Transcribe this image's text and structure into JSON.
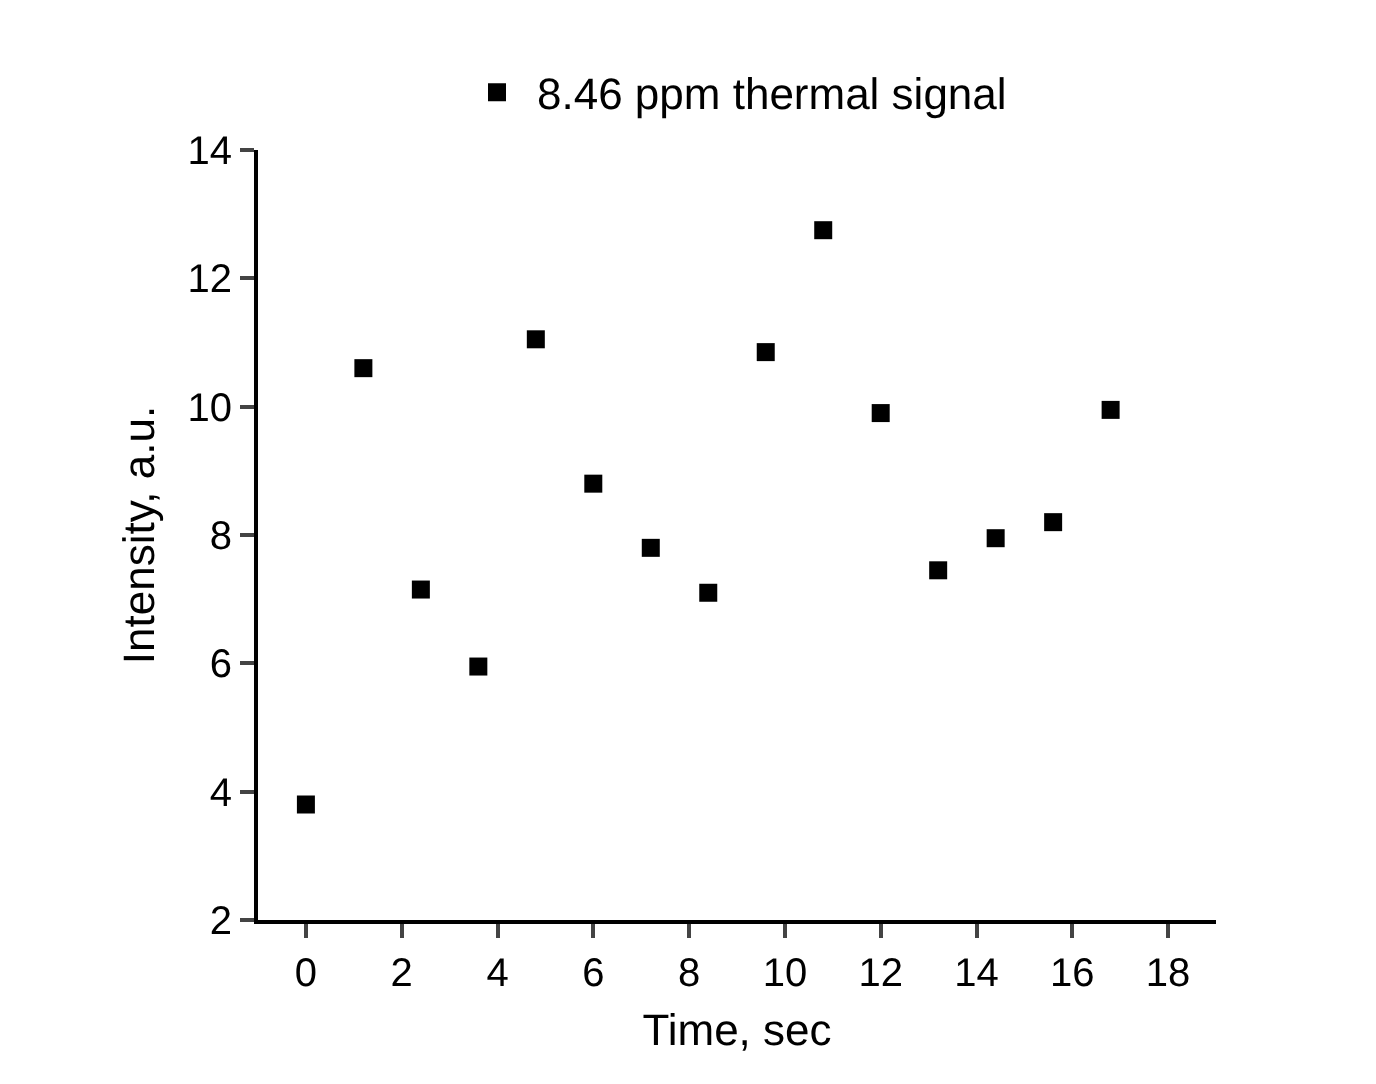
{
  "chart_data": {
    "type": "scatter",
    "xlabel": "Time, sec",
    "ylabel": "Intensity, a.u.",
    "xlim": [
      -1,
      19
    ],
    "ylim": [
      2,
      14
    ],
    "xticks": [
      0,
      2,
      4,
      6,
      8,
      10,
      12,
      14,
      16,
      18
    ],
    "yticks": [
      2,
      4,
      6,
      8,
      10,
      12,
      14
    ],
    "grid": false,
    "legend": "top",
    "marker": "square",
    "x": [
      0,
      1.2,
      2.4,
      3.6,
      4.8,
      6,
      7.2,
      8.4,
      9.6,
      10.8,
      12,
      13.2,
      14.4,
      15.6,
      16.8
    ],
    "series": [
      {
        "name": "8.46 ppm thermal signal",
        "color": "#000000",
        "values": [
          3.8,
          10.6,
          7.15,
          5.95,
          11.05,
          8.8,
          7.8,
          7.1,
          10.85,
          12.75,
          9.9,
          7.45,
          7.95,
          8.2,
          9.95
        ]
      }
    ]
  }
}
